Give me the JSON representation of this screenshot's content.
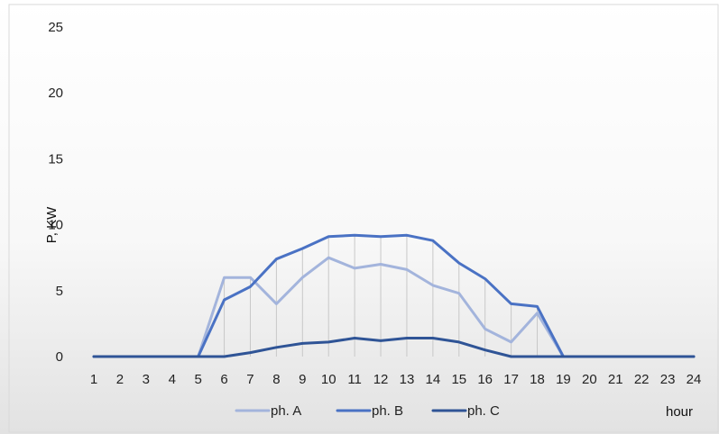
{
  "chart_data": {
    "type": "line",
    "title": "",
    "xlabel": "hour",
    "ylabel": "P, KW",
    "ylim": [
      0,
      25
    ],
    "yticks": [
      0,
      5,
      10,
      15,
      20,
      25
    ],
    "x": [
      1,
      2,
      3,
      4,
      5,
      6,
      7,
      8,
      9,
      10,
      11,
      12,
      13,
      14,
      15,
      16,
      17,
      18,
      19,
      20,
      21,
      22,
      23,
      24
    ],
    "grid": "vertical drop lines",
    "legend": "bottom",
    "series": [
      {
        "name": "ph. A",
        "color": "#a3b4dc",
        "values": [
          0,
          0,
          0,
          0,
          0,
          6.0,
          6.0,
          4.0,
          6.0,
          7.5,
          6.7,
          7.0,
          6.6,
          5.4,
          4.8,
          2.1,
          1.1,
          3.3,
          0,
          0,
          0,
          0,
          0,
          0
        ]
      },
      {
        "name": "ph. B",
        "color": "#4a72c4",
        "values": [
          0,
          0,
          0,
          0,
          0,
          4.3,
          5.3,
          7.4,
          8.2,
          9.1,
          9.2,
          9.1,
          9.2,
          8.8,
          7.1,
          5.9,
          4.0,
          3.8,
          0,
          0,
          0,
          0,
          0,
          0
        ]
      },
      {
        "name": "ph. C",
        "color": "#2f5496",
        "values": [
          0,
          0,
          0,
          0,
          0,
          0,
          0.3,
          0.7,
          1.0,
          1.1,
          1.4,
          1.2,
          1.4,
          1.4,
          1.1,
          0.5,
          0,
          0,
          0,
          0,
          0,
          0,
          0,
          0
        ]
      }
    ]
  }
}
